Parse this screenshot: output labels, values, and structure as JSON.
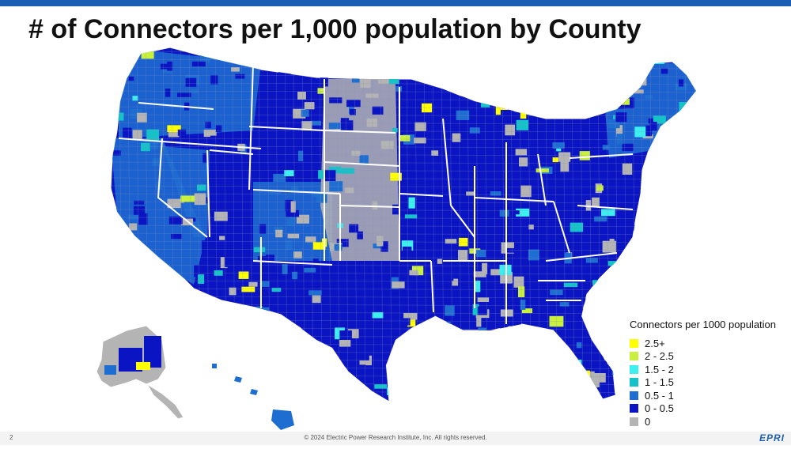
{
  "page": {
    "title": "# of Connectors per 1,000 population by County",
    "page_number": "2",
    "copyright": "© 2024 Electric Power Research Institute, Inc. All rights reserved.",
    "logo_text": "EPRI"
  },
  "colors": {
    "accent_bar": "#1a5fb4",
    "border": "#ffffff",
    "county_line": "#8a93b8"
  },
  "legend": {
    "title": "Connectors per 1000 population",
    "items": [
      {
        "label": "2.5+",
        "color": "#ffff00"
      },
      {
        "label": "2 - 2.5",
        "color": "#c8f03c"
      },
      {
        "label": "1.5 - 2",
        "color": "#3cf0f0"
      },
      {
        "label": "1 - 1.5",
        "color": "#14c3c8"
      },
      {
        "label": "0.5 - 1",
        "color": "#1e6ed2"
      },
      {
        "label": "0 - 0.5",
        "color": "#0a14c3"
      },
      {
        "label": "0",
        "color": "#b4b4b4"
      }
    ]
  },
  "map": {
    "regions": [
      {
        "name": "conus",
        "color": "#0a14c3"
      },
      {
        "name": "pacific-northwest",
        "color": "#1e6ed2"
      },
      {
        "name": "california",
        "color": "#1e6ed2"
      },
      {
        "name": "nevada",
        "color": "#1e6ed2"
      },
      {
        "name": "great-plains",
        "color": "#b4b4b4"
      },
      {
        "name": "mountain-west",
        "color": "#1e6ed2"
      },
      {
        "name": "upper-midwest",
        "color": "#0a14c3"
      },
      {
        "name": "texas",
        "color": "#0a14c3"
      },
      {
        "name": "new-england",
        "color": "#1e6ed2"
      },
      {
        "name": "florida",
        "color": "#0a14c3"
      },
      {
        "name": "alaska",
        "color": "#b4b4b4"
      },
      {
        "name": "hawaii",
        "color": "#1e6ed2"
      }
    ]
  }
}
